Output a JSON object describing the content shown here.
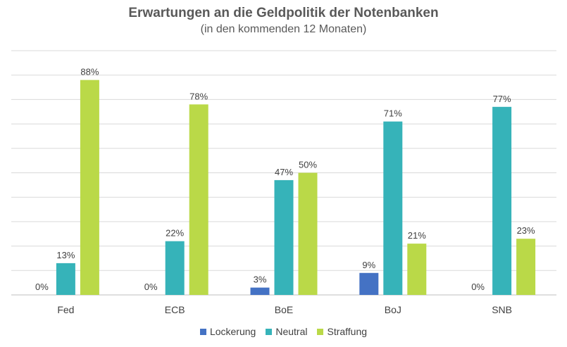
{
  "chart_data": {
    "type": "bar",
    "title": "Erwartungen an die Geldpolitik der Notenbanken",
    "subtitle": "(in den kommenden 12 Monaten)",
    "categories": [
      "Fed",
      "ECB",
      "BoE",
      "BoJ",
      "SNB"
    ],
    "series": [
      {
        "name": "Lockerung",
        "color": "#4472C4",
        "values": [
          0,
          0,
          3,
          9,
          0
        ],
        "labels": [
          "0%",
          "0%",
          "3%",
          "9%",
          "0%"
        ]
      },
      {
        "name": "Neutral",
        "color": "#36B3B9",
        "values": [
          13,
          22,
          47,
          71,
          77
        ],
        "labels": [
          "13%",
          "22%",
          "47%",
          "71%",
          "77%"
        ]
      },
      {
        "name": "Straffung",
        "color": "#BAD948",
        "values": [
          88,
          78,
          50,
          21,
          23
        ],
        "labels": [
          "88%",
          "78%",
          "50%",
          "21%",
          "23%"
        ]
      }
    ],
    "ylim": [
      0,
      100
    ],
    "grid": true,
    "legend_position": "bottom"
  }
}
